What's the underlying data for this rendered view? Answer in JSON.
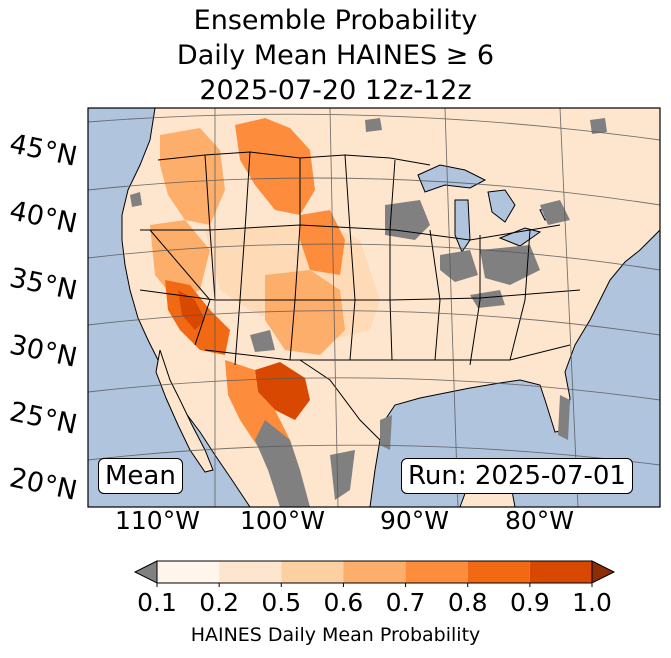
{
  "title": {
    "line1": "Ensemble Probability",
    "line2": "Daily Mean HAINES ≥ 6",
    "line3": "2025-07-20 12z-12z"
  },
  "map": {
    "lat_labels": [
      "45°N",
      "40°N",
      "35°N",
      "30°N",
      "25°N",
      "20°N"
    ],
    "lon_labels": [
      "110°W",
      "100°W",
      "90°W",
      "80°W"
    ],
    "stat_box": "Mean",
    "run_box": "Run: 2025-07-01",
    "colors": {
      "ocean": "#b0c4de",
      "below_min": "#808080",
      "states": "#000000"
    },
    "probability_regions": [
      {
        "name": "northern-rockies",
        "level": 0.7
      },
      {
        "name": "southwest-arizona",
        "level": 0.9
      },
      {
        "name": "big-bend-texas",
        "level": 0.9
      },
      {
        "name": "new-mexico",
        "level": 0.6
      },
      {
        "name": "pacific-northwest",
        "level": 0.6
      },
      {
        "name": "great-basin",
        "level": 0.5
      },
      {
        "name": "central-plains",
        "level": 0.2
      },
      {
        "name": "eastern-us",
        "level": 0.1
      }
    ]
  },
  "colorbar": {
    "label": "HAINES Daily Mean Probability",
    "ticks": [
      "0.1",
      "0.2",
      "0.5",
      "0.6",
      "0.7",
      "0.8",
      "0.9",
      "1.0"
    ],
    "colors": [
      "#808080",
      "#fff5eb",
      "#fee6ce",
      "#fdd0a2",
      "#fdae6b",
      "#fd8d3c",
      "#f16913",
      "#d94801",
      "#8c2d04"
    ]
  }
}
